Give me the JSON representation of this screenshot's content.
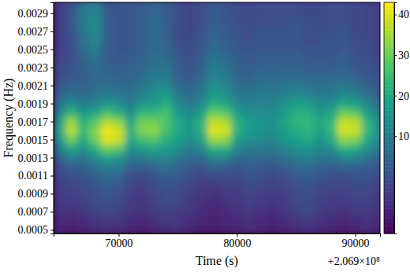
{
  "chart_data": {
    "type": "heatmap",
    "x_label": "Time (s)",
    "y_label": "Frequency (Hz)",
    "annotations": [
      "+2.069×10⁸"
    ],
    "color": "viridis",
    "xlim": [
      64500,
      92100
    ],
    "ylim": [
      0.00046,
      0.00302
    ],
    "xticks": [
      70000,
      80000,
      90000
    ],
    "yticks": [
      0.0005,
      0.0007,
      0.0009,
      0.0011,
      0.0013,
      0.0015,
      0.0017,
      0.0019,
      0.0021,
      0.0023,
      0.0025,
      0.0027,
      0.0029
    ],
    "x": [
      65000,
      66000,
      67000,
      68000,
      69000,
      70000,
      71000,
      72000,
      73000,
      74000,
      75000,
      76000,
      77000,
      78000,
      79000,
      80000,
      81000,
      82000,
      83000,
      84000,
      85000,
      86000,
      87000,
      88000,
      89000,
      90000,
      91000,
      92000
    ],
    "y": [
      0.0005,
      0.0006,
      0.0007,
      0.0008,
      0.0009,
      0.001,
      0.0011,
      0.0012,
      0.0013,
      0.0014,
      0.0015,
      0.0016,
      0.0017,
      0.0018,
      0.0019,
      0.002,
      0.0021,
      0.0022,
      0.0023,
      0.0024,
      0.0025,
      0.0026,
      0.0027,
      0.0028,
      0.0029,
      0.003
    ],
    "z": [
      [
        -8,
        -9,
        -8,
        -7,
        -6,
        -7,
        -8,
        -9,
        -8,
        -7,
        -6,
        -8,
        -9,
        -10,
        -9,
        -8,
        -7,
        -8,
        -9,
        -8,
        -7,
        -6,
        -7,
        -8,
        -9,
        -8,
        -7,
        -8
      ],
      [
        -7,
        -8,
        -7,
        -5,
        -4,
        -5,
        -7,
        -8,
        -6,
        -5,
        -5,
        -7,
        -8,
        -9,
        -8,
        -7,
        -6,
        -7,
        -8,
        -7,
        -5,
        -4,
        -6,
        -7,
        -8,
        -7,
        -6,
        -7
      ],
      [
        -6,
        -6,
        -5,
        -3,
        -2,
        -3,
        -5,
        -6,
        -4,
        -3,
        -4,
        -5,
        -7,
        -8,
        -7,
        -6,
        -5,
        -6,
        -7,
        -5,
        -3,
        -2,
        -4,
        -5,
        -6,
        -5,
        -4,
        -6
      ],
      [
        -5,
        -4,
        -3,
        -1,
        0,
        -1,
        -4,
        -5,
        -3,
        -1,
        -2,
        -4,
        -6,
        -7,
        -6,
        -5,
        -3,
        -4,
        -5,
        -4,
        -2,
        -1,
        -3,
        -4,
        -4,
        -3,
        -3,
        -5
      ],
      [
        -4,
        -3,
        -2,
        0,
        1,
        0,
        -3,
        -4,
        -2,
        0,
        -1,
        -3,
        -5,
        -6,
        -5,
        -4,
        -2,
        -3,
        -4,
        -3,
        -1,
        0,
        -2,
        -3,
        -3,
        -2,
        -2,
        -4
      ],
      [
        -3,
        -2,
        -1,
        1,
        3,
        2,
        -2,
        -3,
        -1,
        1,
        0,
        -2,
        -4,
        -4,
        -3,
        -3,
        -1,
        -2,
        -3,
        -2,
        0,
        1,
        -1,
        -2,
        -2,
        -1,
        -1,
        -3
      ],
      [
        -2,
        0,
        1,
        3,
        6,
        5,
        0,
        -1,
        1,
        3,
        2,
        0,
        -2,
        -1,
        -1,
        -1,
        1,
        0,
        -1,
        0,
        2,
        3,
        1,
        0,
        0,
        1,
        1,
        -1
      ],
      [
        0,
        3,
        4,
        7,
        10,
        9,
        4,
        3,
        5,
        7,
        5,
        2,
        1,
        4,
        3,
        1,
        3,
        2,
        1,
        3,
        5,
        6,
        4,
        3,
        4,
        4,
        3,
        1
      ],
      [
        4,
        10,
        8,
        13,
        18,
        16,
        9,
        9,
        11,
        12,
        9,
        6,
        6,
        12,
        11,
        6,
        6,
        5,
        5,
        7,
        9,
        11,
        8,
        8,
        12,
        11,
        8,
        4
      ],
      [
        10,
        20,
        14,
        22,
        30,
        28,
        15,
        17,
        19,
        17,
        14,
        10,
        12,
        22,
        22,
        12,
        10,
        9,
        9,
        12,
        14,
        16,
        12,
        14,
        22,
        21,
        14,
        8
      ],
      [
        16,
        30,
        20,
        30,
        40,
        38,
        20,
        26,
        27,
        22,
        18,
        14,
        18,
        34,
        33,
        18,
        14,
        13,
        12,
        16,
        18,
        20,
        16,
        20,
        33,
        32,
        20,
        12
      ],
      [
        20,
        37,
        24,
        32,
        42,
        39,
        22,
        32,
        33,
        26,
        20,
        16,
        22,
        40,
        39,
        22,
        17,
        16,
        14,
        18,
        21,
        23,
        19,
        24,
        39,
        38,
        24,
        14
      ],
      [
        18,
        34,
        22,
        28,
        36,
        33,
        20,
        31,
        31,
        27,
        20,
        16,
        22,
        38,
        36,
        22,
        17,
        16,
        14,
        19,
        23,
        24,
        20,
        24,
        38,
        37,
        23,
        13
      ],
      [
        13,
        24,
        16,
        20,
        26,
        22,
        15,
        24,
        24,
        26,
        17,
        13,
        18,
        30,
        28,
        18,
        14,
        14,
        13,
        18,
        22,
        22,
        17,
        19,
        30,
        28,
        18,
        10
      ],
      [
        8,
        14,
        10,
        12,
        16,
        14,
        10,
        16,
        18,
        22,
        13,
        9,
        13,
        22,
        20,
        13,
        11,
        12,
        11,
        15,
        18,
        17,
        13,
        14,
        20,
        18,
        12,
        6
      ],
      [
        4,
        8,
        6,
        8,
        10,
        9,
        7,
        11,
        15,
        17,
        9,
        6,
        9,
        17,
        15,
        9,
        8,
        10,
        9,
        11,
        13,
        12,
        9,
        10,
        13,
        11,
        7,
        3
      ],
      [
        2,
        4,
        4,
        6,
        7,
        6,
        6,
        8,
        12,
        13,
        6,
        4,
        7,
        14,
        12,
        7,
        6,
        8,
        7,
        8,
        9,
        8,
        7,
        7,
        9,
        7,
        4,
        1
      ],
      [
        0,
        2,
        3,
        5,
        5,
        4,
        5,
        6,
        10,
        10,
        4,
        2,
        5,
        12,
        10,
        5,
        4,
        6,
        5,
        6,
        6,
        5,
        5,
        5,
        6,
        4,
        2,
        0
      ],
      [
        -1,
        1,
        3,
        6,
        4,
        3,
        4,
        5,
        8,
        8,
        3,
        1,
        4,
        10,
        8,
        4,
        3,
        4,
        4,
        4,
        4,
        3,
        3,
        3,
        4,
        2,
        1,
        -1
      ],
      [
        -2,
        0,
        4,
        8,
        3,
        2,
        3,
        4,
        7,
        6,
        2,
        0,
        3,
        8,
        6,
        3,
        2,
        3,
        3,
        3,
        3,
        2,
        2,
        2,
        3,
        1,
        0,
        -2
      ],
      [
        -3,
        0,
        6,
        10,
        3,
        1,
        2,
        3,
        6,
        5,
        1,
        -1,
        2,
        6,
        4,
        2,
        1,
        2,
        2,
        2,
        2,
        1,
        1,
        1,
        2,
        0,
        -1,
        -3
      ],
      [
        -3,
        0,
        7,
        12,
        3,
        1,
        2,
        3,
        6,
        4,
        0,
        -1,
        1,
        5,
        3,
        1,
        0,
        1,
        1,
        1,
        1,
        0,
        0,
        1,
        1,
        0,
        -1,
        -3
      ],
      [
        -3,
        1,
        8,
        13,
        3,
        1,
        2,
        3,
        6,
        4,
        0,
        -2,
        1,
        4,
        2,
        1,
        0,
        1,
        1,
        1,
        1,
        0,
        0,
        0,
        1,
        -1,
        -2,
        -3
      ],
      [
        -3,
        1,
        9,
        13,
        3,
        1,
        2,
        3,
        6,
        3,
        0,
        -2,
        0,
        3,
        2,
        0,
        -1,
        0,
        0,
        0,
        1,
        0,
        -1,
        0,
        0,
        -1,
        -2,
        -3
      ],
      [
        -3,
        1,
        9,
        12,
        3,
        1,
        2,
        3,
        5,
        3,
        0,
        -2,
        0,
        3,
        1,
        0,
        -1,
        0,
        0,
        0,
        0,
        -1,
        -1,
        0,
        0,
        -1,
        -2,
        -3
      ],
      [
        -3,
        1,
        8,
        11,
        2,
        1,
        2,
        3,
        5,
        3,
        0,
        -2,
        0,
        2,
        1,
        0,
        -1,
        0,
        0,
        0,
        0,
        -1,
        -1,
        0,
        0,
        -1,
        -2,
        -3
      ]
    ],
    "colorbar": {
      "lim": [
        -14,
        43
      ],
      "ticks": [
        10,
        20,
        30,
        40
      ]
    }
  }
}
